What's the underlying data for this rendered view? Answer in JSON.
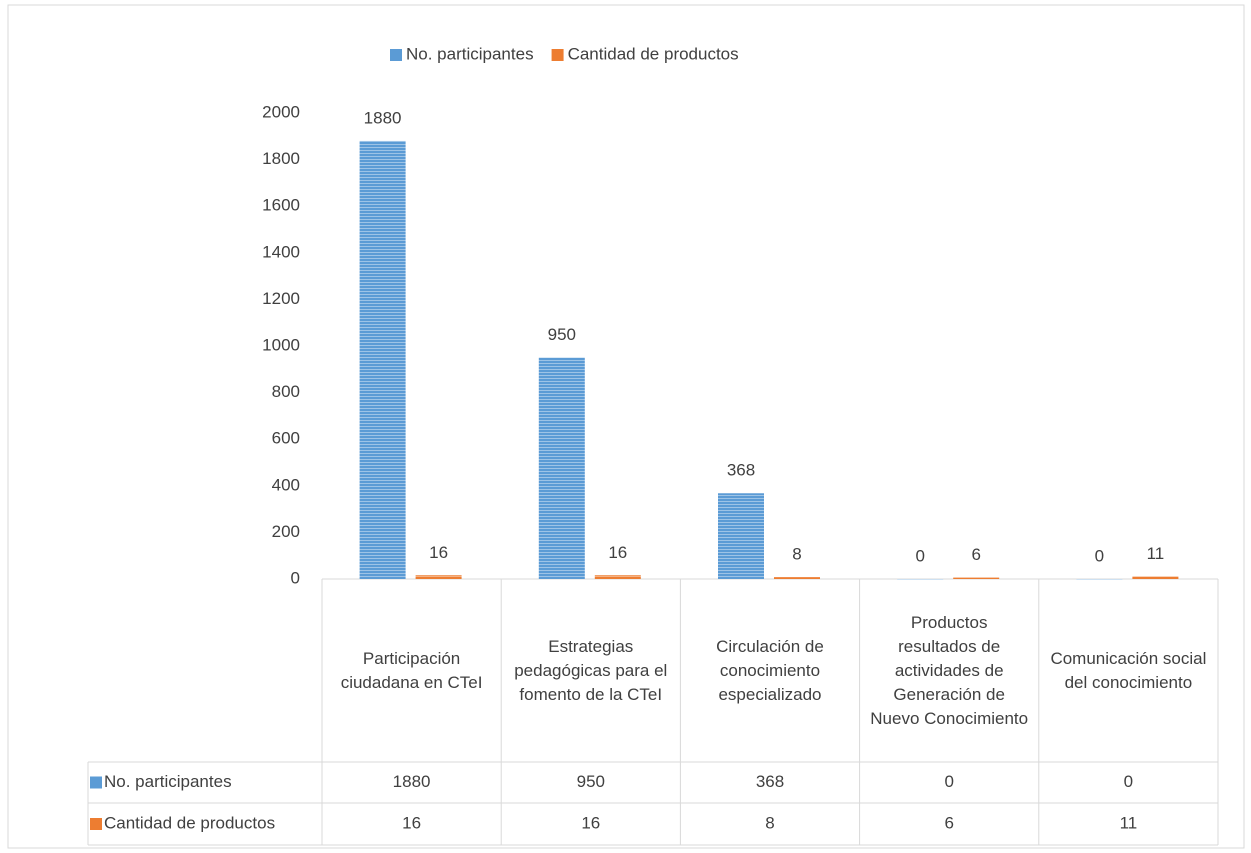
{
  "chart_data": {
    "type": "bar",
    "categories": [
      "Participación ciudadana en CTeI",
      "Estrategias pedagógicas para el fomento de la CTeI",
      "Circulación de conocimiento especializado",
      "Productos resultados de actividades de Generación de Nuevo Conocimiento",
      "Comunicación social del conocimiento"
    ],
    "series": [
      {
        "name": "No. participantes",
        "color": "#5b9bd5",
        "values": [
          1880,
          950,
          368,
          0,
          0
        ]
      },
      {
        "name": "Cantidad de productos",
        "color": "#ed7d31",
        "values": [
          16,
          16,
          8,
          6,
          11
        ]
      }
    ],
    "ylim": [
      0,
      2000
    ],
    "yticks": [
      0,
      200,
      400,
      600,
      800,
      1000,
      1200,
      1400,
      1600,
      1800,
      2000
    ],
    "legend": "top",
    "data_table": true
  }
}
